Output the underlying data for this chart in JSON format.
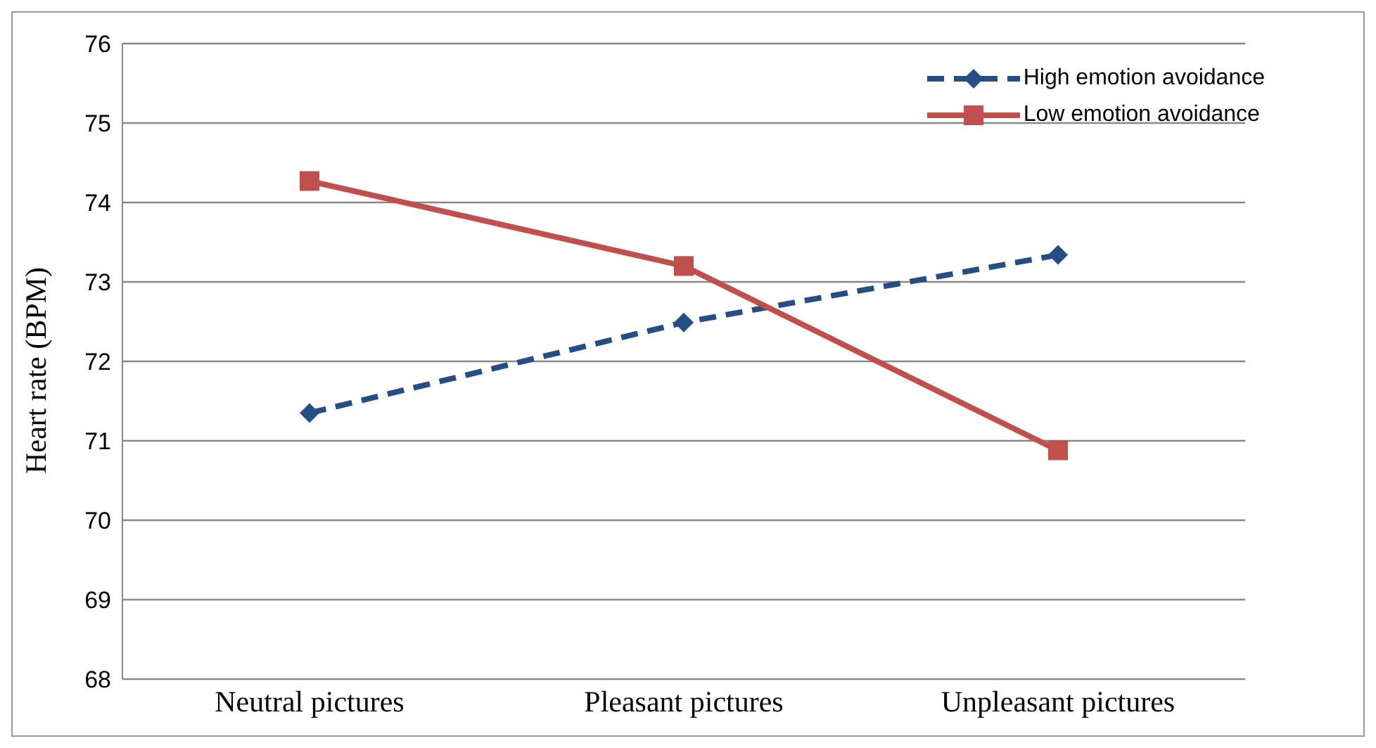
{
  "chart_data": {
    "type": "line",
    "ylabel": "Heart rate (BPM)",
    "categories": [
      "Neutral pictures",
      "Pleasant pictures",
      "Unpleasant pictures"
    ],
    "series": [
      {
        "name": "High emotion avoidance",
        "color": "#254e85",
        "values": [
          71.35,
          72.49,
          73.34
        ],
        "marker": "diamond",
        "line_style": "dashed"
      },
      {
        "name": "Low emotion avoidance",
        "color": "#c0504d",
        "values": [
          74.27,
          73.2,
          70.88
        ],
        "marker": "square",
        "line_style": "solid"
      }
    ],
    "ylim": [
      68,
      76
    ],
    "yticks": [
      68,
      69,
      70,
      71,
      72,
      73,
      74,
      75,
      76
    ],
    "grid": "y",
    "legend": "top right"
  }
}
